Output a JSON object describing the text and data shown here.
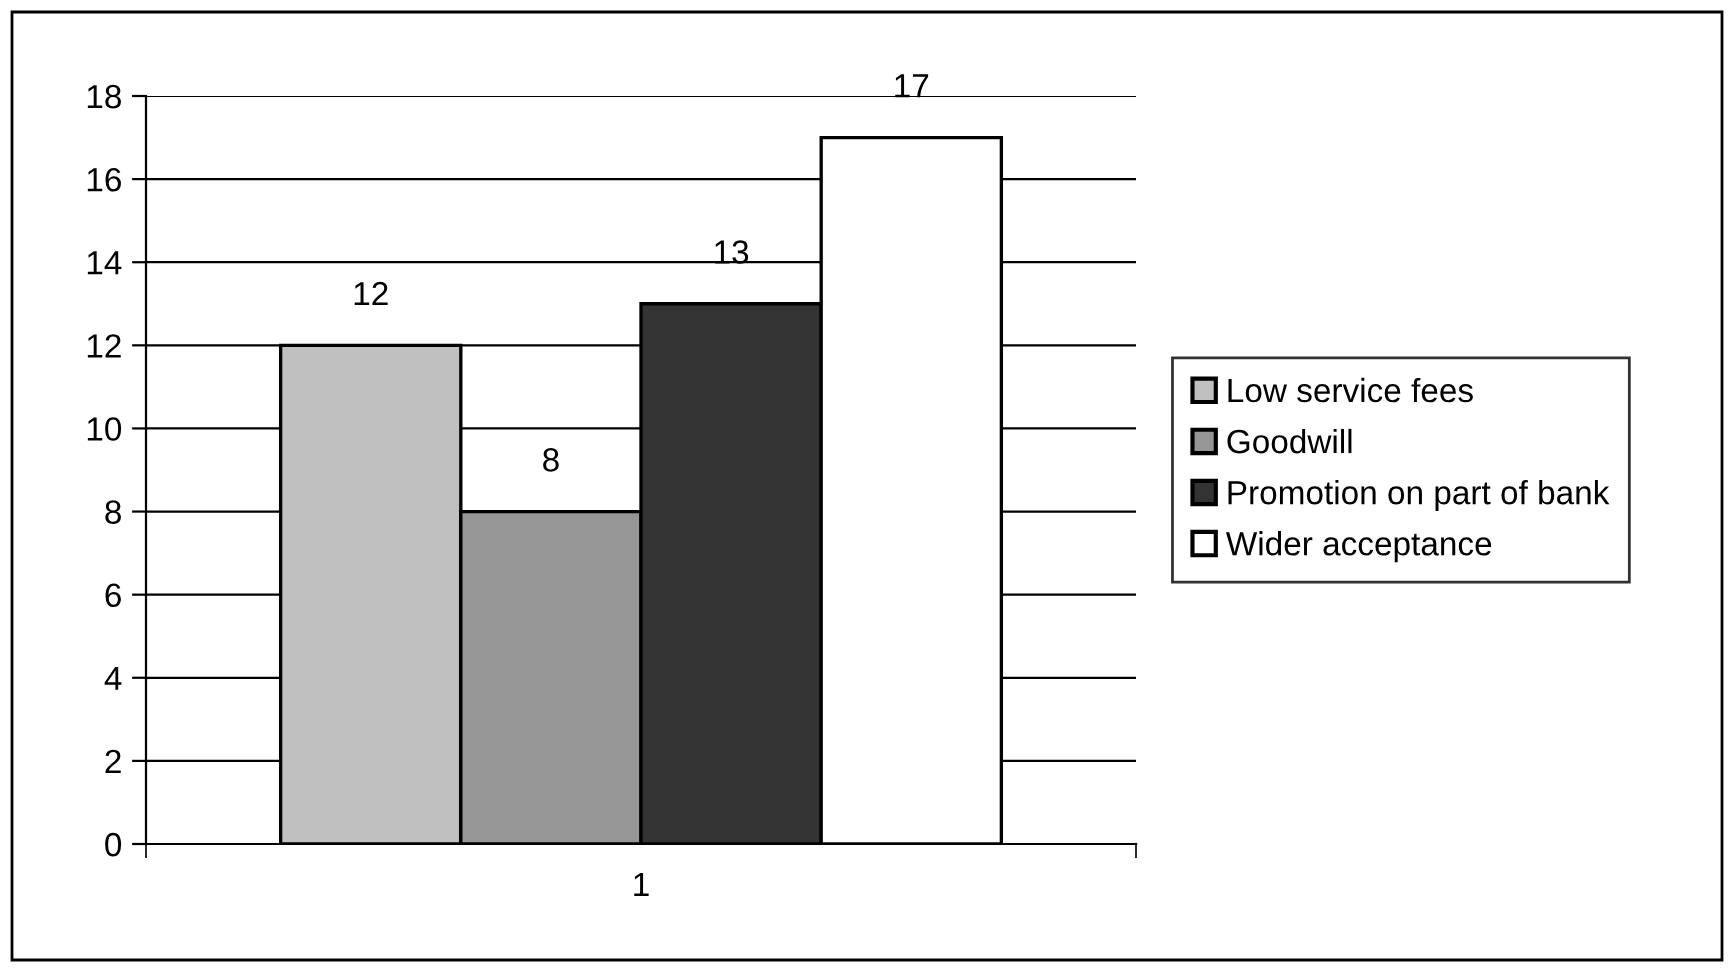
{
  "chart_data": {
    "type": "bar",
    "categories": [
      "1"
    ],
    "series": [
      {
        "name": "Low service fees",
        "color": "#c0c0c0",
        "values": [
          12
        ]
      },
      {
        "name": "Goodwill",
        "color": "#969696",
        "values": [
          8
        ]
      },
      {
        "name": "Promotion on part of bank",
        "color": "#333333",
        "values": [
          13
        ]
      },
      {
        "name": "Wider acceptance",
        "color": "#ffffff",
        "values": [
          17
        ]
      }
    ],
    "ylim": [
      0,
      18
    ],
    "yticks": [
      0,
      2,
      4,
      6,
      8,
      10,
      12,
      14,
      16,
      18
    ],
    "grid": "y",
    "legend": "right",
    "data_labels": true
  }
}
